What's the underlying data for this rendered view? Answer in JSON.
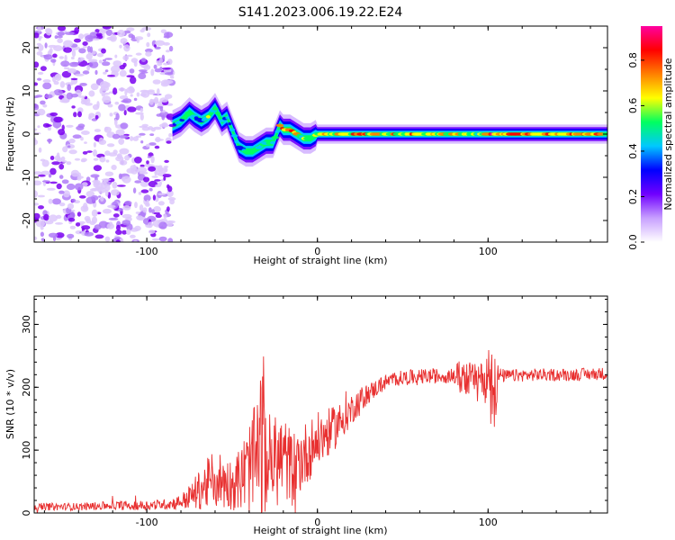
{
  "figure": {
    "title": "S141.2023.006.19.22.E24"
  },
  "chart_data": [
    {
      "type": "heatmap",
      "xlabel": "Height of straight line (km)",
      "ylabel": "Frequency (Hz)",
      "xlim": [
        -166,
        170
      ],
      "ylim": [
        -25,
        25
      ],
      "x_ticks": [
        -100,
        0,
        100
      ],
      "y_ticks": [
        -20,
        -10,
        0,
        10,
        20
      ],
      "grid": false,
      "description_of_content": [],
      "ridge": {
        "x": [
          -85,
          -80,
          -75,
          -72,
          -68,
          -64,
          -60,
          -56,
          -53,
          -50,
          -46,
          -42,
          -38,
          -34,
          -30,
          -26,
          -22,
          -20,
          -16,
          -12,
          -8,
          -4,
          0,
          10,
          30,
          60,
          90,
          95,
          100,
          130,
          170
        ],
        "freq": [
          2,
          3,
          5,
          4,
          3,
          4,
          6,
          3,
          4,
          1,
          -3,
          -4,
          -4,
          -3,
          -2,
          -2,
          2,
          1,
          1,
          0,
          -1,
          -1,
          0,
          0,
          0,
          0,
          0,
          0,
          0,
          0,
          0
        ],
        "amp": [
          0.3,
          0.4,
          0.5,
          0.4,
          0.4,
          0.5,
          0.5,
          0.4,
          0.4,
          0.4,
          0.4,
          0.5,
          0.5,
          0.5,
          0.5,
          0.5,
          0.6,
          0.8,
          0.7,
          0.6,
          0.5,
          0.5,
          0.55,
          0.75,
          0.7,
          0.7,
          0.6,
          0.5,
          0.8,
          0.8,
          0.7
        ]
      },
      "noise_region_x": [
        -166,
        -85
      ],
      "colorbar": {
        "label": "Normalized spectral amplitude",
        "range": [
          0,
          0.95
        ],
        "ticks": [
          0.0,
          0.2,
          0.4,
          0.6,
          0.8
        ],
        "colors": [
          "#ffffff",
          "#c8a0ff",
          "#7000ff",
          "#0000ff",
          "#00c8ff",
          "#00ff60",
          "#ffff00",
          "#ff8000",
          "#ff0000",
          "#ff00a0"
        ]
      }
    },
    {
      "type": "line",
      "xlabel": "Height of straight line (km)",
      "ylabel": "SNR (10 * v/v)",
      "xlim": [
        -166,
        170
      ],
      "ylim": [
        0,
        345
      ],
      "x_ticks": [
        -100,
        0,
        100
      ],
      "y_ticks": [
        0,
        100,
        200,
        300
      ],
      "grid": false,
      "series": [
        {
          "color": "#e83030",
          "x": [
            -166,
            -140,
            -120,
            -100,
            -90,
            -85,
            -80,
            -75,
            -70,
            -65,
            -60,
            -55,
            -50,
            -45,
            -40,
            -35,
            -33,
            -30,
            -25,
            -20,
            -15,
            -10,
            -5,
            0,
            5,
            10,
            15,
            20,
            25,
            30,
            35,
            40,
            45,
            50,
            60,
            70,
            80,
            85,
            90,
            95,
            100,
            102,
            104,
            106,
            110,
            120,
            130,
            140,
            150,
            160,
            170
          ],
          "y": [
            10,
            10,
            12,
            12,
            14,
            15,
            18,
            25,
            35,
            45,
            55,
            50,
            45,
            55,
            70,
            90,
            110,
            85,
            80,
            90,
            70,
            85,
            100,
            115,
            125,
            135,
            150,
            165,
            180,
            190,
            200,
            208,
            213,
            215,
            217,
            218,
            218,
            217,
            215,
            215,
            218,
            225,
            205,
            218,
            218,
            219,
            220,
            220,
            220,
            221,
            222
          ],
          "noise": [
            6,
            6,
            7,
            8,
            8,
            10,
            12,
            20,
            30,
            40,
            50,
            45,
            40,
            55,
            75,
            95,
            140,
            80,
            75,
            70,
            60,
            55,
            50,
            45,
            40,
            35,
            30,
            25,
            20,
            16,
            14,
            12,
            12,
            12,
            12,
            12,
            12,
            35,
            25,
            20,
            40,
            110,
            80,
            15,
            10,
            10,
            10,
            10,
            10,
            10,
            10
          ]
        }
      ]
    }
  ]
}
